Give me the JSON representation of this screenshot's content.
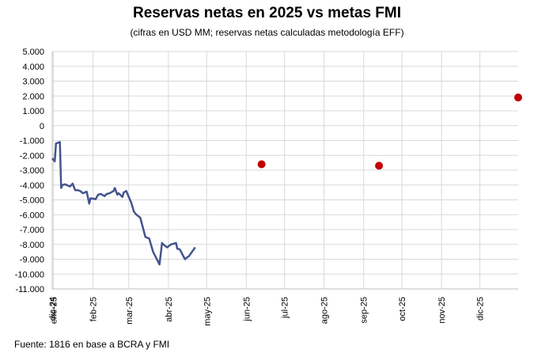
{
  "chart_data": {
    "type": "line",
    "title": "Reservas netas en 2025 vs metas FMI",
    "subtitle": "(cifras en USD MM; reservas netas calculadas metodología EFF)",
    "source": "Fuente: 1816 en base a BCRA y FMI",
    "x_ticks": [
      "dic-24",
      "ene-25",
      "feb-25",
      "mar-25",
      "abr-25",
      "may-25",
      "jun-25",
      "jul-25",
      "ago-25",
      "sep-25",
      "oct-25",
      "nov-25",
      "dic-25"
    ],
    "y_ticks": [
      "5.000",
      "4.000",
      "3.000",
      "2.000",
      "1.000",
      "0",
      "-1.000",
      "-2.000",
      "-3.000",
      "-4.000",
      "-5.000",
      "-6.000",
      "-7.000",
      "-8.000",
      "-9.000",
      "-10.000",
      "-11.000"
    ],
    "ylim": [
      -11000,
      5000
    ],
    "grid": true,
    "colors": {
      "line": "#44548e",
      "target": "#c00000",
      "grid": "#d9d9d9",
      "axis": "#bfbfbf"
    },
    "series": [
      {
        "type": "line",
        "x": [
          "2024-12-31",
          "2025-01-02",
          "2025-01-03",
          "2025-01-06",
          "2025-01-07",
          "2025-01-08",
          "2025-01-10",
          "2025-01-14",
          "2025-01-16",
          "2025-01-18",
          "2025-01-20",
          "2025-01-22",
          "2025-01-24",
          "2025-01-27",
          "2025-01-29",
          "2025-01-30",
          "2025-01-31",
          "2025-02-03",
          "2025-02-05",
          "2025-02-07",
          "2025-02-10",
          "2025-02-11",
          "2025-02-12",
          "2025-02-14",
          "2025-02-17",
          "2025-02-18",
          "2025-02-20",
          "2025-02-21",
          "2025-02-24",
          "2025-02-25",
          "2025-02-27",
          "2025-03-03",
          "2025-03-05",
          "2025-03-07",
          "2025-03-10",
          "2025-03-14",
          "2025-03-17",
          "2025-03-20",
          "2025-03-25",
          "2025-03-27",
          "2025-03-28",
          "2025-03-31",
          "2025-04-03",
          "2025-04-07",
          "2025-04-08",
          "2025-04-09",
          "2025-04-10",
          "2025-04-14",
          "2025-04-16",
          "2025-04-17",
          "2025-04-22"
        ],
        "values": [
          -2200,
          -2400,
          -1200,
          -1100,
          -4200,
          -4000,
          -3950,
          -4100,
          -3900,
          -4350,
          -4350,
          -4400,
          -4550,
          -4450,
          -5250,
          -4900,
          -4900,
          -4950,
          -4650,
          -4600,
          -4750,
          -4650,
          -4600,
          -4550,
          -4400,
          -4200,
          -4650,
          -4550,
          -4800,
          -4500,
          -4400,
          -5200,
          -5800,
          -6000,
          -6200,
          -7500,
          -7600,
          -8500,
          -9350,
          -7900,
          -8000,
          -8200,
          -8000,
          -7900,
          -8300,
          -8300,
          -8350,
          -9000,
          -8850,
          -8800,
          -8200
        ]
      },
      {
        "type": "scatter",
        "x": [
          "2025-06-13",
          "2025-09-13",
          "2025-12-31"
        ],
        "values": [
          -2600,
          -2700,
          1900
        ]
      }
    ]
  }
}
